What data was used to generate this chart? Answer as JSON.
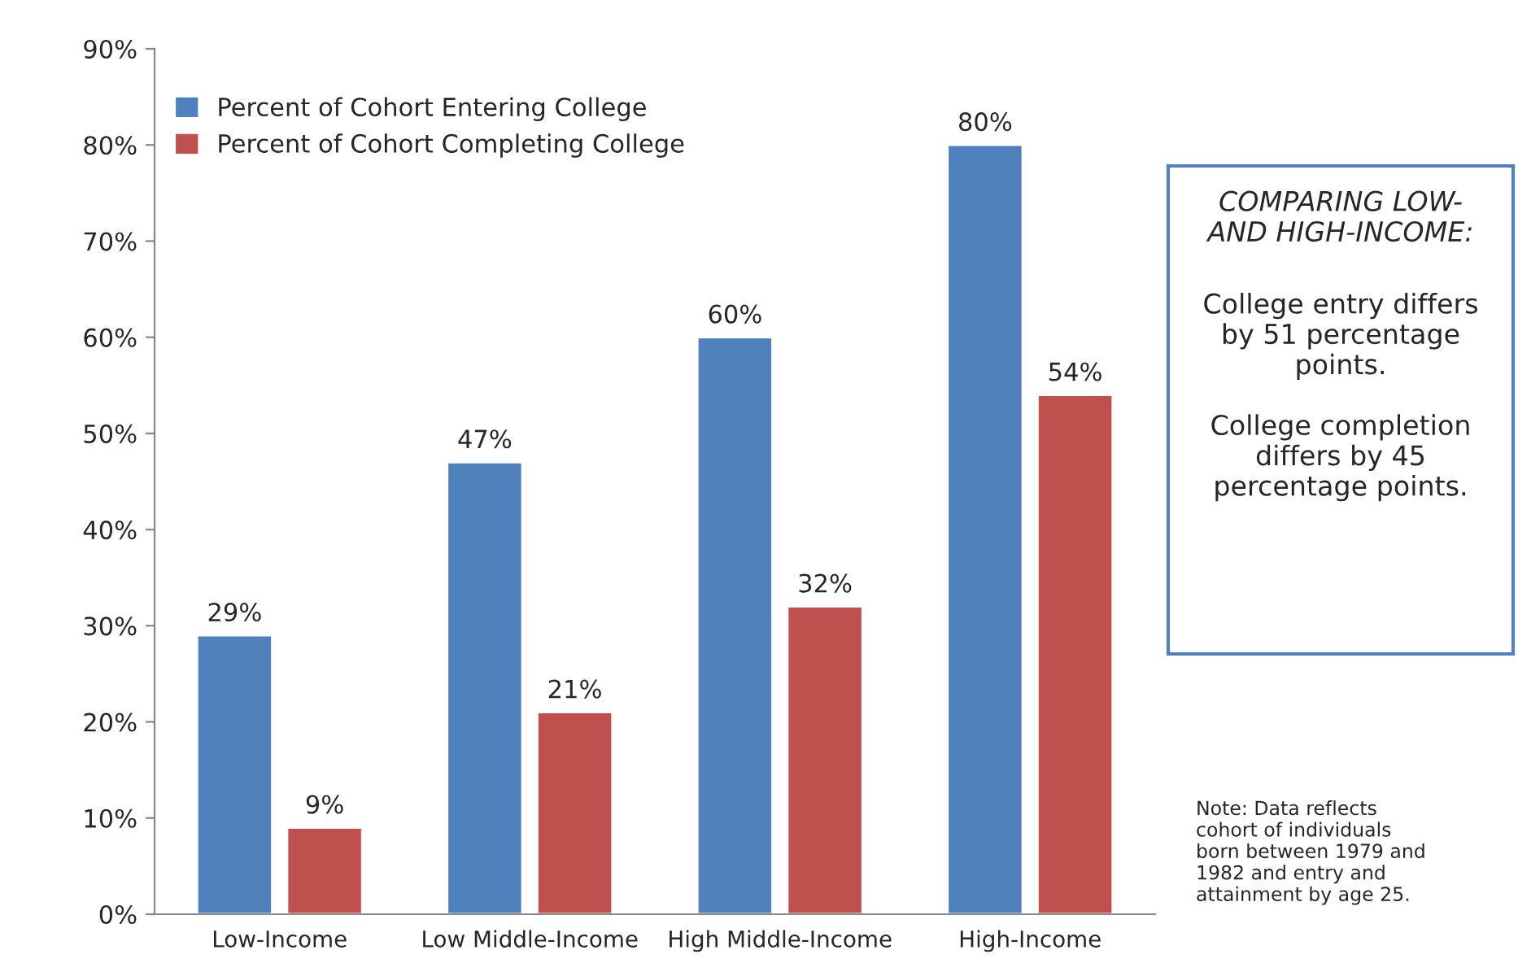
{
  "chart_data": {
    "type": "bar",
    "categories": [
      "Low-Income",
      "Low Middle-Income",
      "High Middle-Income",
      "High-Income"
    ],
    "series": [
      {
        "name": "Percent of Cohort Entering College",
        "color": "#4f81bd",
        "values": [
          29,
          47,
          60,
          80
        ],
        "value_labels": [
          "29%",
          "47%",
          "60%",
          "80%"
        ]
      },
      {
        "name": "Percent of Cohort Completing College",
        "color": "#c0504d",
        "values": [
          9,
          21,
          32,
          54
        ],
        "value_labels": [
          "9%",
          "21%",
          "32%",
          "54%"
        ]
      }
    ],
    "ylim": [
      0,
      90
    ],
    "yticks": [
      {
        "value": 0,
        "label": "0%"
      },
      {
        "value": 10,
        "label": "10%"
      },
      {
        "value": 20,
        "label": "20%"
      },
      {
        "value": 30,
        "label": "30%"
      },
      {
        "value": 40,
        "label": "40%"
      },
      {
        "value": 50,
        "label": "50%"
      },
      {
        "value": 60,
        "label": "60%"
      },
      {
        "value": 70,
        "label": "70%"
      },
      {
        "value": 80,
        "label": "80%"
      },
      {
        "value": 90,
        "label": "90%"
      }
    ],
    "grid": false,
    "legend": "top left",
    "annotations": [
      "COMPARING LOW-\nAND HIGH-INCOME:",
      "College entry differs\nby 51 percentage\npoints.\n\nCollege completion\ndiffers by 45\npercentage points.",
      "Note: Data reflects\ncohort of individuals\nborn between 1979 and\n1982 and entry and\nattainment by age 25."
    ]
  }
}
